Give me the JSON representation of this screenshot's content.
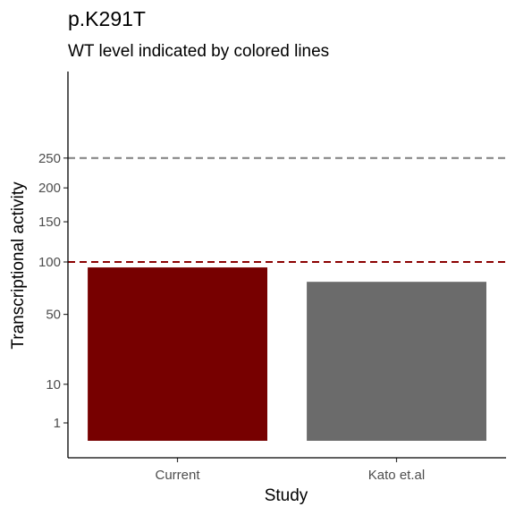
{
  "chart_data": {
    "type": "bar",
    "title": "p.K291T",
    "subtitle": "WT level indicated by colored lines",
    "xlabel": "Study",
    "ylabel": "Transcriptional activity",
    "categories": [
      "Current",
      "Kato et.al"
    ],
    "values": [
      94,
      79
    ],
    "bar_colors": [
      "#770000",
      "#6b6b6b"
    ],
    "y_scale": "sqrt",
    "y_ticks": [
      1,
      10,
      50,
      100,
      150,
      200,
      250
    ],
    "ylim": [
      0,
      360
    ],
    "reference_lines": [
      {
        "value": 100,
        "color": "#8b0000",
        "style": "dashed"
      },
      {
        "value": 250,
        "color": "#7f7f7f",
        "style": "dashed"
      }
    ],
    "grid": false,
    "legend": "none"
  }
}
